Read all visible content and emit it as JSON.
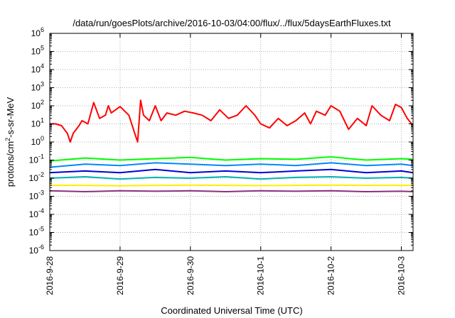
{
  "chart_data": {
    "type": "line",
    "title": "/data/run/goesPlots/archive/2016-10-03/04:00/flux/../flux/5daysEarthFluxes.txt",
    "xlabel": "Coordinated Universal Time (UTC)",
    "ylabel": {
      "base": "protons/cm",
      "sup": "2",
      "rest": "-s-sr-MeV"
    },
    "y_scale": "log",
    "ylim": [
      1e-06,
      1000000.0
    ],
    "xlim": [
      "2016-09-28T00:00",
      "2016-10-03T04:00"
    ],
    "grid": true,
    "y_ticks": [
      {
        "v": -6,
        "base": "10",
        "exp": "-6"
      },
      {
        "v": -5,
        "base": "10",
        "exp": "-5"
      },
      {
        "v": -4,
        "base": "10",
        "exp": "-4"
      },
      {
        "v": -3,
        "base": "10",
        "exp": "-3"
      },
      {
        "v": -2,
        "base": "10",
        "exp": "-2"
      },
      {
        "v": -1,
        "base": "10",
        "exp": "-1"
      },
      {
        "v": 0,
        "base": "10",
        "exp": "0"
      },
      {
        "v": 1,
        "base": "10",
        "exp": "1"
      },
      {
        "v": 2,
        "base": "10",
        "exp": "2"
      },
      {
        "v": 3,
        "base": "10",
        "exp": "3"
      },
      {
        "v": 4,
        "base": "10",
        "exp": "4"
      },
      {
        "v": 5,
        "base": "10",
        "exp": "5"
      },
      {
        "v": 6,
        "base": "10",
        "exp": "6"
      }
    ],
    "x_ticks": [
      "2016-9-28",
      "2016-9-29",
      "2016-9-30",
      "2016-10-1",
      "2016-10-2",
      "2016-10-3"
    ],
    "series": [
      {
        "color": "#ff0000",
        "x": [
          "2016-09-28T00:00",
          "2016-09-28T02:00",
          "2016-09-28T04:00",
          "2016-09-28T06:00",
          "2016-09-28T07:00",
          "2016-09-28T08:00",
          "2016-09-28T10:00",
          "2016-09-28T11:00",
          "2016-09-28T13:00",
          "2016-09-28T15:00",
          "2016-09-28T17:00",
          "2016-09-28T19:00",
          "2016-09-28T20:00",
          "2016-09-28T21:00",
          "2016-09-29T00:00",
          "2016-09-29T03:00",
          "2016-09-29T05:00",
          "2016-09-29T06:00",
          "2016-09-29T07:00",
          "2016-09-29T08:00",
          "2016-09-29T10:00",
          "2016-09-29T12:00",
          "2016-09-29T14:00",
          "2016-09-29T16:00",
          "2016-09-29T19:00",
          "2016-09-29T22:00",
          "2016-09-30T01:00",
          "2016-09-30T04:00",
          "2016-09-30T07:00",
          "2016-09-30T10:00",
          "2016-09-30T13:00",
          "2016-09-30T16:00",
          "2016-09-30T19:00",
          "2016-09-30T22:00",
          "2016-10-01T00:00",
          "2016-10-01T03:00",
          "2016-10-01T06:00",
          "2016-10-01T09:00",
          "2016-10-01T12:00",
          "2016-10-01T15:00",
          "2016-10-01T17:00",
          "2016-10-01T19:00",
          "2016-10-01T22:00",
          "2016-10-02T00:00",
          "2016-10-02T03:00",
          "2016-10-02T06:00",
          "2016-10-02T09:00",
          "2016-10-02T12:00",
          "2016-10-02T14:00",
          "2016-10-02T17:00",
          "2016-10-02T20:00",
          "2016-10-02T22:00",
          "2016-10-03T00:00",
          "2016-10-03T02:00",
          "2016-10-03T04:00"
        ],
        "y": [
          10,
          10,
          8,
          3,
          1,
          3,
          8,
          15,
          10,
          150,
          20,
          30,
          100,
          40,
          90,
          30,
          3,
          1,
          200,
          30,
          15,
          100,
          15,
          40,
          30,
          50,
          40,
          30,
          15,
          60,
          20,
          30,
          100,
          30,
          10,
          6,
          20,
          8,
          15,
          40,
          10,
          50,
          30,
          100,
          50,
          5,
          20,
          8,
          100,
          30,
          15,
          120,
          80,
          20,
          8
        ]
      },
      {
        "color": "#00ff00",
        "x": [
          "2016-09-28T00:00",
          "2016-09-28T12:00",
          "2016-09-29T00:00",
          "2016-09-29T12:00",
          "2016-09-30T00:00",
          "2016-09-30T12:00",
          "2016-10-01T00:00",
          "2016-10-01T12:00",
          "2016-10-02T00:00",
          "2016-10-02T12:00",
          "2016-10-03T00:00",
          "2016-10-03T04:00"
        ],
        "y": [
          0.09,
          0.13,
          0.1,
          0.12,
          0.14,
          0.1,
          0.12,
          0.11,
          0.15,
          0.1,
          0.12,
          0.11
        ]
      },
      {
        "color": "#0088ff",
        "x": [
          "2016-09-28T00:00",
          "2016-09-28T12:00",
          "2016-09-29T00:00",
          "2016-09-29T12:00",
          "2016-09-30T00:00",
          "2016-09-30T12:00",
          "2016-10-01T00:00",
          "2016-10-01T12:00",
          "2016-10-02T00:00",
          "2016-10-02T12:00",
          "2016-10-03T00:00",
          "2016-10-03T04:00"
        ],
        "y": [
          0.04,
          0.06,
          0.05,
          0.07,
          0.06,
          0.05,
          0.06,
          0.05,
          0.07,
          0.05,
          0.06,
          0.05
        ]
      },
      {
        "color": "#0000dd",
        "x": [
          "2016-09-28T00:00",
          "2016-09-28T12:00",
          "2016-09-29T00:00",
          "2016-09-29T12:00",
          "2016-09-30T00:00",
          "2016-09-30T12:00",
          "2016-10-01T00:00",
          "2016-10-01T12:00",
          "2016-10-02T00:00",
          "2016-10-02T12:00",
          "2016-10-03T00:00",
          "2016-10-03T04:00"
        ],
        "y": [
          0.02,
          0.025,
          0.02,
          0.03,
          0.02,
          0.025,
          0.02,
          0.025,
          0.03,
          0.02,
          0.025,
          0.02
        ]
      },
      {
        "color": "#00b3b3",
        "x": [
          "2016-09-28T00:00",
          "2016-09-28T12:00",
          "2016-09-29T00:00",
          "2016-09-29T12:00",
          "2016-09-30T00:00",
          "2016-09-30T12:00",
          "2016-10-01T00:00",
          "2016-10-01T12:00",
          "2016-10-02T00:00",
          "2016-10-02T12:00",
          "2016-10-03T00:00",
          "2016-10-03T04:00"
        ],
        "y": [
          0.01,
          0.012,
          0.009,
          0.011,
          0.01,
          0.012,
          0.009,
          0.011,
          0.012,
          0.01,
          0.011,
          0.01
        ]
      },
      {
        "color": "#ffee00",
        "x": [
          "2016-09-28T00:00",
          "2016-09-28T12:00",
          "2016-09-29T00:00",
          "2016-09-29T12:00",
          "2016-09-30T00:00",
          "2016-09-30T12:00",
          "2016-10-01T00:00",
          "2016-10-01T12:00",
          "2016-10-02T00:00",
          "2016-10-02T12:00",
          "2016-10-03T00:00",
          "2016-10-03T04:00"
        ],
        "y": [
          0.004,
          0.004,
          0.0038,
          0.004,
          0.0041,
          0.004,
          0.0039,
          0.004,
          0.0041,
          0.004,
          0.004,
          0.004
        ]
      },
      {
        "color": "#8b2f7f",
        "x": [
          "2016-09-28T00:00",
          "2016-09-28T12:00",
          "2016-09-29T00:00",
          "2016-09-29T12:00",
          "2016-09-30T00:00",
          "2016-09-30T12:00",
          "2016-10-01T00:00",
          "2016-10-01T12:00",
          "2016-10-02T00:00",
          "2016-10-02T12:00",
          "2016-10-03T00:00",
          "2016-10-03T04:00"
        ],
        "y": [
          0.002,
          0.0018,
          0.002,
          0.0019,
          0.002,
          0.0018,
          0.002,
          0.0019,
          0.002,
          0.0018,
          0.0019,
          0.0018
        ]
      }
    ]
  }
}
